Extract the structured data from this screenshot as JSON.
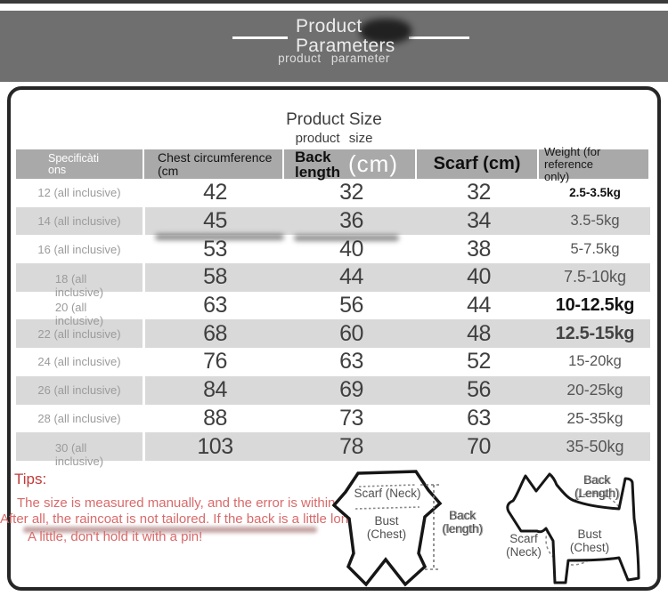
{
  "header": {
    "title": "Product\nParameters",
    "subtitle": "product parameter"
  },
  "panel": {
    "title": "Product Size",
    "subtitle": "product size"
  },
  "table": {
    "columns": {
      "specifications": "Specificàti\nons",
      "chest": "Chest circumference\n(cm",
      "back": "Back\nlength",
      "back_unit": "(cm)",
      "scarf": "Scarf (cm)",
      "weight": "Weight (for reference\nonly)"
    },
    "rows": [
      {
        "size": "12 (all inclusive)",
        "wrap": false,
        "chest": "42",
        "back": "32",
        "scarf": "32",
        "weight": "2.5-3.5kg",
        "emphasis": "bold-small"
      },
      {
        "size": "14 (all inclusive)",
        "wrap": false,
        "chest": "45",
        "back": "36",
        "scarf": "34",
        "weight": "3.5-5kg",
        "emphasis": "normal"
      },
      {
        "size": "16 (all inclusive)",
        "wrap": false,
        "chest": "53",
        "back": "40",
        "scarf": "38",
        "weight": "5-7.5kg",
        "emphasis": "normal"
      },
      {
        "size": "18 (all\ninclusive)",
        "wrap": true,
        "chest": "58",
        "back": "44",
        "scarf": "40",
        "weight": "7.5-10kg",
        "emphasis": "large"
      },
      {
        "size": "20 (all\ninclusive)",
        "wrap": true,
        "chest": "63",
        "back": "56",
        "scarf": "44",
        "weight": "10-12.5kg",
        "emphasis": "bold-large"
      },
      {
        "size": "22 (all inclusive)",
        "wrap": false,
        "chest": "68",
        "back": "60",
        "scarf": "48",
        "weight": "12.5-15kg",
        "emphasis": "bold-large-gray"
      },
      {
        "size": "24 (all inclusive)",
        "wrap": false,
        "chest": "76",
        "back": "63",
        "scarf": "52",
        "weight": "15-20kg",
        "emphasis": "normal"
      },
      {
        "size": "26 (all inclusive)",
        "wrap": false,
        "chest": "84",
        "back": "69",
        "scarf": "56",
        "weight": "20-25kg",
        "emphasis": "medium"
      },
      {
        "size": "28 (all inclusive)",
        "wrap": false,
        "chest": "88",
        "back": "73",
        "scarf": "63",
        "weight": "25-35kg",
        "emphasis": "medium"
      },
      {
        "size": "30 (all\ninclusive)",
        "wrap": true,
        "chest": "103",
        "back": "78",
        "scarf": "70",
        "weight": "35-50kg",
        "emphasis": "large"
      }
    ]
  },
  "tips": {
    "heading": "Tips:",
    "line1": "The size is measured manually, and the error is within 2-3cm, which is",
    "line2": "After all, the raincoat is not tailored. If the back is a little long, it will be",
    "line3": "A little, don't hold it with a pin!"
  },
  "coat_figure": {
    "scarf_label": "Scarf (Neck)",
    "bust_label": "Bust\n(Chest)",
    "back_label": "Back\n(length)"
  },
  "dog_figure": {
    "back_label": "Back\n(Length)",
    "scarf_label": "Scarf\n(Neck)",
    "bust_label": "Bust\n(Chest)"
  },
  "colors": {
    "top_bar": "#3a3a3a",
    "header_band": "#6f6f6f",
    "table_header_bg": "#a9a9a9",
    "row_alt_bg": "#d9d9d9",
    "tips_heading_red": "#c03a3a",
    "tips_text_red": "#d96a6a",
    "value_text": "#3f3f3f",
    "panel_border": "#262626"
  }
}
